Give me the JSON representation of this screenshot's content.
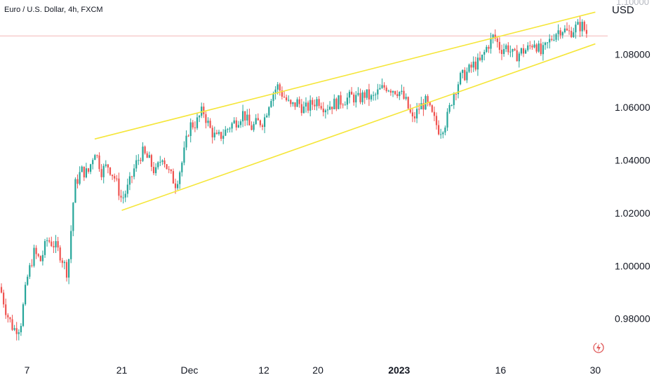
{
  "header": {
    "title": "Euro / U.S. Dollar, 4h, FXCM",
    "currency": "USD"
  },
  "colors": {
    "up": "#26a69a",
    "down": "#ef5350",
    "channel": "#f5e63a",
    "price_line": "#f4b6b6",
    "axis_text": "#131722",
    "logo": "#e05a5a"
  },
  "icons": {
    "logo": "lightning-logo-icon"
  },
  "chart_data": {
    "type": "candlestick",
    "title": "Euro / U.S. Dollar, 4h, FXCM",
    "ylabel": "USD",
    "ylim": [
      0.968,
      1.099
    ],
    "y_ticks": [
      0.98,
      1.0,
      1.02,
      1.04,
      1.06,
      1.08
    ],
    "y_tick_labels": [
      "0.98000",
      "1.00000",
      "1.02000",
      "1.04000",
      "1.06000",
      "1.08000"
    ],
    "x_tick_labels": [
      {
        "label": "7",
        "date": "2022-11-07"
      },
      {
        "label": "21",
        "date": "2022-11-21"
      },
      {
        "label": "Dec",
        "date": "2022-12-01"
      },
      {
        "label": "12",
        "date": "2022-12-12"
      },
      {
        "label": "20",
        "date": "2022-12-20"
      },
      {
        "label": "2023",
        "date": "2023-01-01",
        "bold": true
      },
      {
        "label": "16",
        "date": "2023-01-16"
      },
      {
        "label": "30",
        "date": "2023-01-30"
      }
    ],
    "current_price": 1.087,
    "close_path": [
      [
        "2022-11-03",
        0.992
      ],
      [
        "2022-11-04",
        0.982
      ],
      [
        "2022-11-05",
        0.976
      ],
      [
        "2022-11-06",
        0.977
      ],
      [
        "2022-11-07",
        0.995
      ],
      [
        "2022-11-08",
        1.005
      ],
      [
        "2022-11-09",
        1.002
      ],
      [
        "2022-11-10",
        1.01
      ],
      [
        "2022-11-11",
        1.008
      ],
      [
        "2022-11-12",
        1.004
      ],
      [
        "2022-11-13",
        0.997
      ],
      [
        "2022-11-14",
        1.03
      ],
      [
        "2022-11-15",
        1.036
      ],
      [
        "2022-11-16",
        1.035
      ],
      [
        "2022-11-17",
        1.044
      ],
      [
        "2022-11-18",
        1.036
      ],
      [
        "2022-11-19",
        1.038
      ],
      [
        "2022-11-20",
        1.033
      ],
      [
        "2022-11-21",
        1.025
      ],
      [
        "2022-11-22",
        1.03
      ],
      [
        "2022-11-23",
        1.038
      ],
      [
        "2022-11-24",
        1.043
      ],
      [
        "2022-11-25",
        1.04
      ],
      [
        "2022-11-26",
        1.035
      ],
      [
        "2022-11-27",
        1.042
      ],
      [
        "2022-11-28",
        1.035
      ],
      [
        "2022-11-29",
        1.031
      ],
      [
        "2022-11-30",
        1.04
      ],
      [
        "2022-12-01",
        1.053
      ],
      [
        "2022-12-02",
        1.054
      ],
      [
        "2022-12-03",
        1.059
      ],
      [
        "2022-12-04",
        1.052
      ],
      [
        "2022-12-05",
        1.048
      ],
      [
        "2022-12-06",
        1.05
      ],
      [
        "2022-12-07",
        1.053
      ],
      [
        "2022-12-08",
        1.055
      ],
      [
        "2022-12-09",
        1.058
      ],
      [
        "2022-12-10",
        1.052
      ],
      [
        "2022-12-11",
        1.054
      ],
      [
        "2022-12-12",
        1.055
      ],
      [
        "2022-12-13",
        1.064
      ],
      [
        "2022-12-14",
        1.068
      ],
      [
        "2022-12-15",
        1.064
      ],
      [
        "2022-12-16",
        1.06
      ],
      [
        "2022-12-17",
        1.062
      ],
      [
        "2022-12-18",
        1.059
      ],
      [
        "2022-12-19",
        1.061
      ],
      [
        "2022-12-20",
        1.063
      ],
      [
        "2022-12-21",
        1.06
      ],
      [
        "2022-12-22",
        1.061
      ],
      [
        "2022-12-23",
        1.062
      ],
      [
        "2022-12-24",
        1.063
      ],
      [
        "2022-12-25",
        1.064
      ],
      [
        "2022-12-26",
        1.063
      ],
      [
        "2022-12-27",
        1.065
      ],
      [
        "2022-12-28",
        1.063
      ],
      [
        "2022-12-29",
        1.066
      ],
      [
        "2022-12-30",
        1.068
      ],
      [
        "2023-01-01",
        1.066
      ],
      [
        "2023-01-02",
        1.062
      ],
      [
        "2023-01-03",
        1.055
      ],
      [
        "2023-01-04",
        1.06
      ],
      [
        "2023-01-05",
        1.062
      ],
      [
        "2023-01-06",
        1.056
      ],
      [
        "2023-01-07",
        1.051
      ],
      [
        "2023-01-08",
        1.055
      ],
      [
        "2023-01-09",
        1.065
      ],
      [
        "2023-01-10",
        1.071
      ],
      [
        "2023-01-11",
        1.073
      ],
      [
        "2023-01-12",
        1.076
      ],
      [
        "2023-01-13",
        1.077
      ],
      [
        "2023-01-14",
        1.083
      ],
      [
        "2023-01-15",
        1.087
      ],
      [
        "2023-01-16",
        1.082
      ],
      [
        "2023-01-17",
        1.083
      ],
      [
        "2023-01-18",
        1.079
      ],
      [
        "2023-01-19",
        1.081
      ],
      [
        "2023-01-20",
        1.082
      ],
      [
        "2023-01-21",
        1.085
      ],
      [
        "2023-01-22",
        1.08
      ],
      [
        "2023-01-23",
        1.084
      ],
      [
        "2023-01-24",
        1.088
      ],
      [
        "2023-01-25",
        1.09
      ],
      [
        "2023-01-26",
        1.088
      ],
      [
        "2023-01-27",
        1.09
      ],
      [
        "2023-01-28",
        1.091
      ],
      [
        "2023-01-29",
        1.087
      ]
    ],
    "channel_lines": [
      {
        "name": "upper",
        "from": [
          "2022-11-17",
          1.048
        ],
        "to": [
          "2023-01-30",
          1.096
        ]
      },
      {
        "name": "lower",
        "from": [
          "2022-11-21",
          1.021
        ],
        "to": [
          "2023-01-30",
          1.084
        ]
      }
    ],
    "grid": false,
    "legend": "none"
  }
}
